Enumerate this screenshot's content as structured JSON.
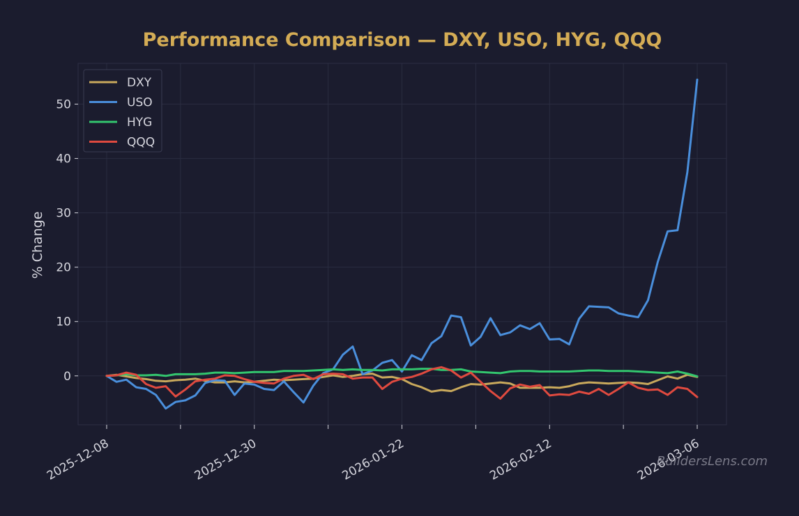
{
  "chart_data": {
    "type": "line",
    "title": "Performance Comparison — DXY, USO, HYG, QQQ",
    "xlabel": "",
    "ylabel": "% Change",
    "x_start": "2025-12-08",
    "x_end": "2026-03-06",
    "x_tick_labels": [
      "2025-12-08",
      "2025-12-30",
      "2026-01-22",
      "2026-02-12",
      "2026-03-06"
    ],
    "ylim": [
      -9,
      57.5
    ],
    "y_ticks": [
      0,
      10,
      20,
      30,
      40,
      50
    ],
    "grid": true,
    "legend_position": "top-left",
    "series": [
      {
        "name": "DXY",
        "color": "#c9a95c",
        "values": [
          0.0,
          0.2,
          -0.1,
          -0.4,
          -0.6,
          -0.9,
          -1.0,
          -0.8,
          -0.7,
          -0.5,
          -0.9,
          -1.2,
          -1.2,
          -1.0,
          -1.2,
          -1.1,
          -0.9,
          -0.7,
          -0.8,
          -0.7,
          -0.6,
          -0.5,
          -0.2,
          0.1,
          -0.2,
          0.0,
          0.3,
          0.4,
          -0.3,
          -0.2,
          -0.6,
          -1.5,
          -2.1,
          -2.9,
          -2.6,
          -2.8,
          -2.1,
          -1.5,
          -1.6,
          -1.4,
          -1.2,
          -1.4,
          -2.2,
          -2.2,
          -2.2,
          -2.1,
          -2.2,
          -1.9,
          -1.4,
          -1.2,
          -1.3,
          -1.4,
          -1.3,
          -1.2,
          -1.3,
          -1.5,
          -0.8,
          -0.1,
          -0.5,
          0.2,
          -0.2
        ]
      },
      {
        "name": "USO",
        "color": "#4a8fdc",
        "values": [
          0.0,
          -1.1,
          -0.7,
          -2.1,
          -2.4,
          -3.5,
          -6.0,
          -4.8,
          -4.5,
          -3.6,
          -1.3,
          -0.8,
          -0.9,
          -3.5,
          -1.4,
          -1.6,
          -2.4,
          -2.6,
          -1.0,
          -3.0,
          -4.9,
          -1.8,
          0.5,
          1.2,
          3.9,
          5.4,
          0.3,
          1.0,
          2.4,
          2.9,
          0.8,
          3.8,
          2.9,
          6.0,
          7.3,
          11.1,
          10.8,
          5.6,
          7.2,
          10.6,
          7.5,
          8.0,
          9.3,
          8.6,
          9.7,
          6.7,
          6.8,
          5.8,
          10.5,
          12.8,
          12.7,
          12.6,
          11.5,
          11.1,
          10.8,
          13.9,
          21.0,
          26.6,
          26.8,
          37.5,
          54.5
        ]
      },
      {
        "name": "HYG",
        "color": "#33c66e",
        "values": [
          0.0,
          0.1,
          0.3,
          0.1,
          0.1,
          0.2,
          0.0,
          0.3,
          0.3,
          0.3,
          0.4,
          0.6,
          0.6,
          0.5,
          0.6,
          0.7,
          0.7,
          0.7,
          0.9,
          0.9,
          0.9,
          1.0,
          1.1,
          1.2,
          1.1,
          1.2,
          1.1,
          1.1,
          1.0,
          1.2,
          1.2,
          1.2,
          1.3,
          1.3,
          1.1,
          1.1,
          1.2,
          0.8,
          0.7,
          0.6,
          0.5,
          0.8,
          0.9,
          0.9,
          0.8,
          0.8,
          0.8,
          0.8,
          0.9,
          1.0,
          1.0,
          0.9,
          0.9,
          0.9,
          0.8,
          0.7,
          0.6,
          0.5,
          0.8,
          0.4,
          -0.1
        ]
      },
      {
        "name": "QQQ",
        "color": "#e04a3f",
        "values": [
          0.0,
          0.1,
          0.6,
          0.2,
          -1.5,
          -2.2,
          -1.9,
          -3.8,
          -2.5,
          -1.0,
          -0.7,
          -0.5,
          0.1,
          0.0,
          -0.6,
          -1.1,
          -1.3,
          -1.4,
          -0.5,
          0.0,
          0.2,
          -0.6,
          0.3,
          0.4,
          0.3,
          -0.5,
          -0.3,
          -0.3,
          -2.4,
          -1.1,
          -0.5,
          -0.2,
          0.4,
          1.2,
          1.6,
          1.0,
          -0.3,
          0.6,
          -1.1,
          -2.8,
          -4.2,
          -2.3,
          -1.6,
          -2.0,
          -1.7,
          -3.6,
          -3.4,
          -3.5,
          -2.9,
          -3.3,
          -2.4,
          -3.5,
          -2.4,
          -1.2,
          -2.2,
          -2.6,
          -2.5,
          -3.5,
          -2.1,
          -2.4,
          -3.9
        ]
      }
    ]
  },
  "watermark": "BuildersLens.com",
  "colors": {
    "background": "#1b1c2e",
    "title": "#d4ac55",
    "grid": "#2a2c40",
    "text": "#d6d6de"
  }
}
